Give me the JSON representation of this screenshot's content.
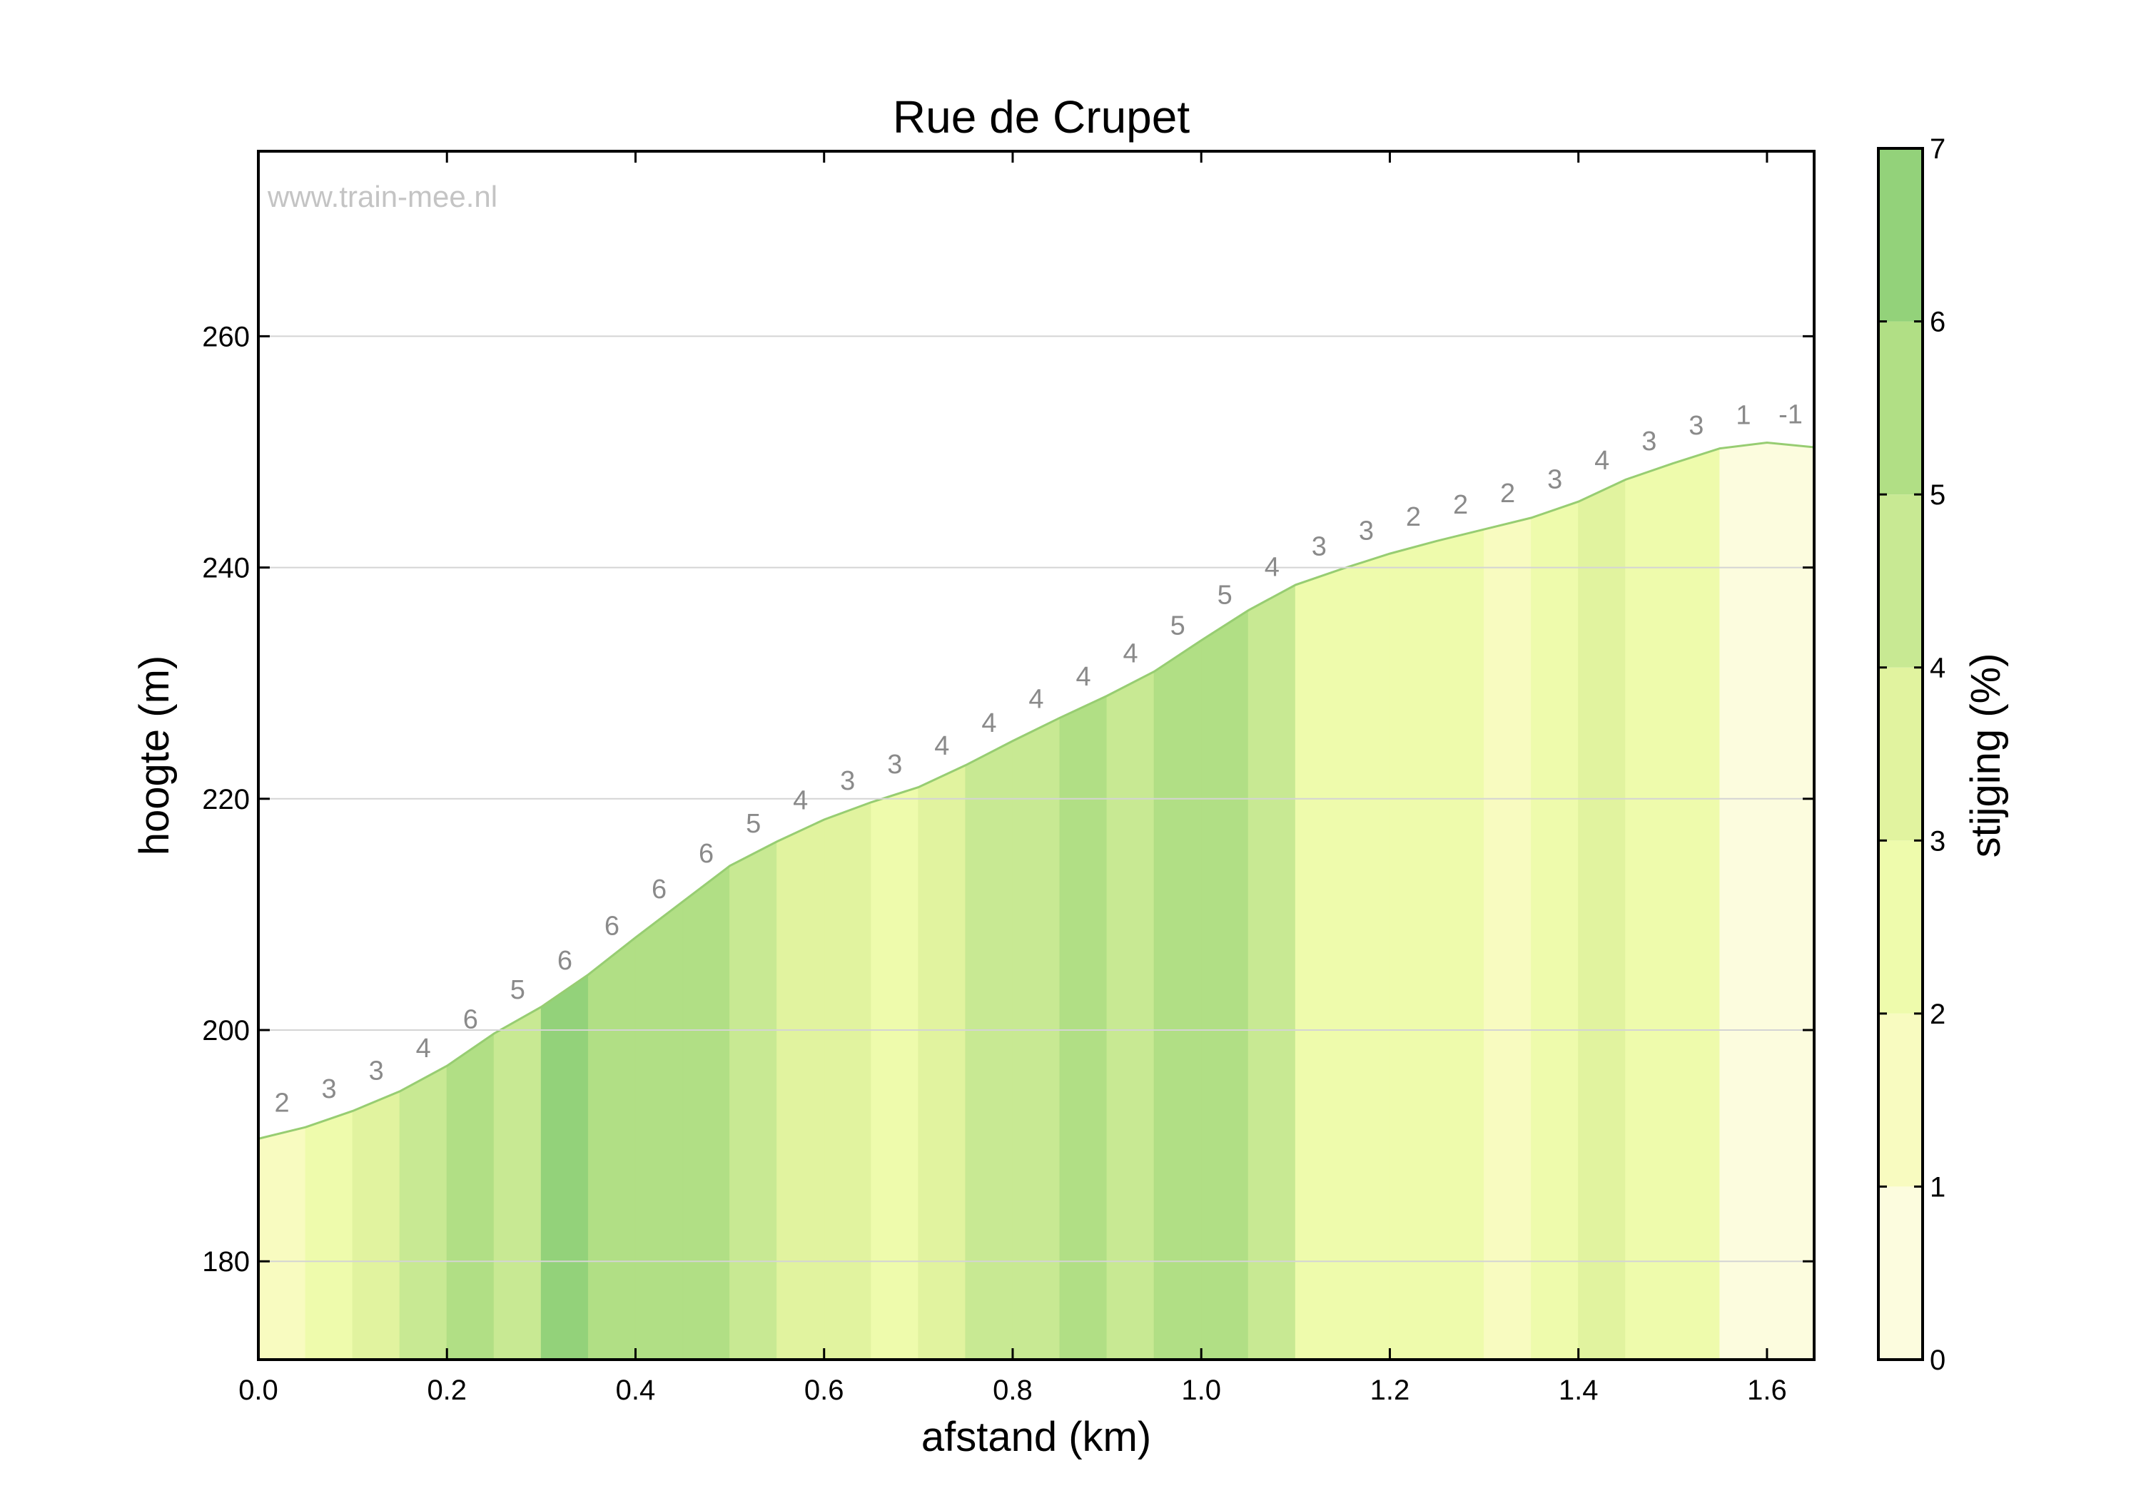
{
  "chart_data": {
    "type": "area",
    "title": "Rue de Crupet",
    "watermark": "www.train-mee.nl",
    "xlabel": "afstand (km)",
    "ylabel": "hoogte (m)",
    "colorbar_label": "stijging (%)",
    "xlim": [
      0,
      1.65
    ],
    "ylim": [
      171.5,
      276
    ],
    "x_ticks": [
      "0.0",
      "0.2",
      "0.4",
      "0.6",
      "0.8",
      "1.0",
      "1.2",
      "1.4",
      "1.6"
    ],
    "y_ticks": [
      "180",
      "200",
      "220",
      "240",
      "260"
    ],
    "colorbar_ticks": [
      "0",
      "1",
      "2",
      "3",
      "4",
      "5",
      "6",
      "7"
    ],
    "colorbar_range": [
      0,
      7
    ],
    "grid": "horizontal",
    "colors": {
      "0": "#fcfcde",
      "1": "#f8fbc0",
      "2": "#eefbac",
      "3": "#e1f39f",
      "4": "#c8e993",
      "5": "#b1df85",
      "6": "#93d27a",
      "line": "#97cd72"
    },
    "x": [
      0.0,
      0.05,
      0.1,
      0.15,
      0.2,
      0.25,
      0.3,
      0.35,
      0.4,
      0.45,
      0.5,
      0.55,
      0.6,
      0.65,
      0.7,
      0.75,
      0.8,
      0.85,
      0.9,
      0.95,
      1.0,
      1.05,
      1.1,
      1.15,
      1.2,
      1.25,
      1.3,
      1.35,
      1.4,
      1.45,
      1.5,
      1.55,
      1.6,
      1.65
    ],
    "elevation": [
      190.6,
      191.6,
      193.0,
      194.7,
      196.9,
      199.7,
      202.0,
      204.8,
      208.0,
      211.1,
      214.2,
      216.3,
      218.2,
      219.7,
      221.0,
      222.9,
      225.0,
      227.0,
      228.9,
      231.0,
      233.7,
      236.3,
      238.5,
      239.9,
      241.2,
      242.3,
      243.3,
      244.3,
      245.7,
      247.6,
      249.0,
      250.3,
      250.8,
      250.4
    ],
    "gradients": [
      2,
      3,
      3,
      4,
      6,
      5,
      6,
      6,
      6,
      6,
      5,
      4,
      3,
      3,
      4,
      4,
      4,
      4,
      4,
      5,
      5,
      4,
      3,
      3,
      2,
      2,
      2,
      3,
      4,
      3,
      3,
      1,
      -1
    ],
    "segment_color_class": [
      1,
      2,
      3,
      4,
      5,
      4,
      6,
      5,
      5,
      5,
      4,
      3,
      3,
      2,
      3,
      4,
      4,
      5,
      4,
      5,
      5,
      4,
      2,
      2,
      2,
      2,
      1,
      2,
      3,
      2,
      2,
      0,
      0
    ]
  }
}
